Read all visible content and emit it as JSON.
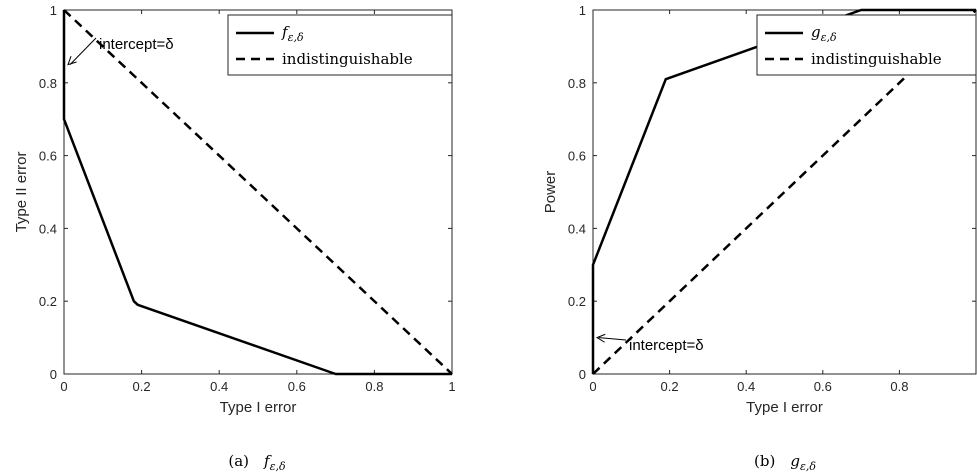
{
  "chart_data": [
    {
      "type": "line",
      "caption": "(a)  fε,δ",
      "xlabel": "Type I error",
      "ylabel": "Type II error",
      "xlim": [
        0,
        1
      ],
      "ylim": [
        0,
        1
      ],
      "x_ticks": [
        0,
        0.2,
        0.4,
        0.6,
        0.8,
        1
      ],
      "y_ticks": [
        0,
        0.2,
        0.4,
        0.6,
        0.8,
        1
      ],
      "x_tick_labels": [
        "0",
        "0.2",
        "0.4",
        "0.6",
        "0.8",
        "1"
      ],
      "y_tick_labels": [
        "0",
        "0.2",
        "0.4",
        "0.6",
        "0.8",
        "1"
      ],
      "grid": false,
      "legend_position": "top-right",
      "series": [
        {
          "name": "fε,δ",
          "style": "solid",
          "color": "#000000",
          "x": [
            0,
            0,
            0.18,
            0.19,
            0.7,
            1
          ],
          "y": [
            1,
            0.7,
            0.2,
            0.19,
            0,
            0
          ]
        },
        {
          "name": "indistinguishable",
          "style": "dashed",
          "color": "#000000",
          "x": [
            0,
            1
          ],
          "y": [
            1,
            0
          ]
        }
      ],
      "annotation": {
        "text": "intercept=δ",
        "points_to": [
          0,
          0.85
        ]
      }
    },
    {
      "type": "line",
      "caption": "(b)  gε,δ",
      "xlabel": "Type I error",
      "ylabel": "Power",
      "xlim": [
        0,
        1
      ],
      "ylim": [
        0,
        1
      ],
      "x_ticks": [
        0,
        0.2,
        0.4,
        0.6,
        0.8
      ],
      "y_ticks": [
        0,
        0.2,
        0.4,
        0.6,
        0.8,
        1
      ],
      "x_tick_labels": [
        "0",
        "0.2",
        "0.4",
        "0.6",
        "0.8"
      ],
      "y_tick_labels": [
        "0",
        "0.2",
        "0.4",
        "0.6",
        "0.8",
        "1"
      ],
      "grid": false,
      "legend_position": "top-right",
      "series": [
        {
          "name": "gε,δ",
          "style": "solid",
          "color": "#000000",
          "x": [
            0,
            0,
            0.19,
            0.7,
            1
          ],
          "y": [
            0,
            0.3,
            0.81,
            1,
            1
          ]
        },
        {
          "name": "indistinguishable",
          "style": "dashed",
          "color": "#000000",
          "x": [
            0,
            1
          ],
          "y": [
            0,
            1
          ]
        }
      ],
      "annotation": {
        "text": "intercept=δ",
        "points_to": [
          0,
          0.1
        ]
      }
    }
  ]
}
